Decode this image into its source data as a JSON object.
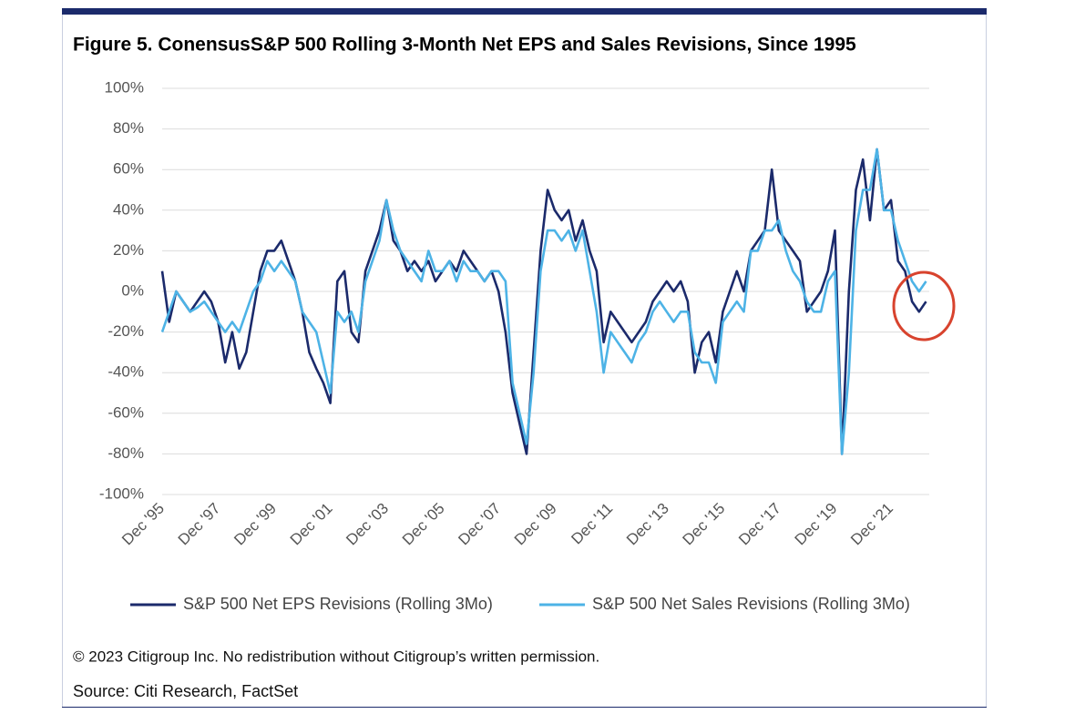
{
  "chart_data": {
    "type": "line",
    "title": "Figure 5. ConensusS&P 500 Rolling 3-Month Net EPS and Sales Revisions, Since 1995",
    "categories": [
      "Dec '95",
      null,
      null,
      null,
      null,
      null,
      null,
      null,
      "Dec '97",
      null,
      null,
      null,
      null,
      null,
      null,
      null,
      "Dec '99",
      null,
      null,
      null,
      null,
      null,
      null,
      null,
      "Dec '01",
      null,
      null,
      null,
      null,
      null,
      null,
      null,
      "Dec '03",
      null,
      null,
      null,
      null,
      null,
      null,
      null,
      "Dec '05",
      null,
      null,
      null,
      null,
      null,
      null,
      null,
      "Dec '07",
      null,
      null,
      null,
      null,
      null,
      null,
      null,
      "Dec '09",
      null,
      null,
      null,
      null,
      null,
      null,
      null,
      "Dec '11",
      null,
      null,
      null,
      null,
      null,
      null,
      null,
      "Dec '13",
      null,
      null,
      null,
      null,
      null,
      null,
      null,
      "Dec '15",
      null,
      null,
      null,
      null,
      null,
      null,
      null,
      "Dec '17",
      null,
      null,
      null,
      null,
      null,
      null,
      null,
      "Dec '19",
      null,
      null,
      null,
      null,
      null,
      null,
      null,
      "Dec '21",
      null,
      null,
      null,
      null,
      null
    ],
    "series": [
      {
        "name": "S&P 500 Net EPS Revisions (Rolling 3Mo)",
        "color": "#1b2a6b",
        "values": [
          10,
          -15,
          0,
          -5,
          -10,
          -5,
          0,
          -5,
          -15,
          -35,
          -20,
          -38,
          -30,
          -10,
          10,
          20,
          20,
          25,
          15,
          5,
          -10,
          -30,
          -38,
          -45,
          -55,
          5,
          10,
          -20,
          -25,
          10,
          20,
          30,
          45,
          25,
          20,
          10,
          15,
          10,
          15,
          5,
          10,
          15,
          10,
          20,
          15,
          10,
          5,
          10,
          0,
          -20,
          -50,
          -65,
          -80,
          -30,
          20,
          50,
          40,
          35,
          40,
          25,
          35,
          20,
          10,
          -25,
          -10,
          -15,
          -20,
          -25,
          -20,
          -15,
          -5,
          0,
          5,
          0,
          5,
          -5,
          -40,
          -25,
          -20,
          -35,
          -10,
          0,
          10,
          0,
          20,
          25,
          30,
          60,
          30,
          25,
          20,
          15,
          -10,
          -5,
          0,
          10,
          30,
          -80,
          0,
          50,
          65,
          35,
          70,
          40,
          45,
          15,
          10,
          -5,
          -10,
          -5
        ]
      },
      {
        "name": "S&P 500 Net Sales Revisions (Rolling 3Mo)",
        "color": "#4db3e6",
        "values": [
          -20,
          -10,
          0,
          -5,
          -10,
          -8,
          -5,
          -10,
          -15,
          -20,
          -15,
          -20,
          -10,
          0,
          5,
          15,
          10,
          15,
          10,
          5,
          -10,
          -15,
          -20,
          -35,
          -50,
          -10,
          -15,
          -10,
          -20,
          5,
          15,
          25,
          45,
          30,
          20,
          15,
          10,
          5,
          20,
          10,
          10,
          15,
          5,
          15,
          10,
          10,
          5,
          10,
          10,
          5,
          -45,
          -60,
          -75,
          -40,
          10,
          30,
          30,
          25,
          30,
          20,
          30,
          10,
          -10,
          -40,
          -20,
          -25,
          -30,
          -35,
          -25,
          -20,
          -10,
          -5,
          -10,
          -15,
          -10,
          -10,
          -30,
          -35,
          -35,
          -45,
          -15,
          -10,
          -5,
          -10,
          20,
          20,
          30,
          30,
          35,
          20,
          10,
          5,
          -5,
          -10,
          -10,
          5,
          10,
          -80,
          -40,
          30,
          50,
          50,
          70,
          40,
          40,
          25,
          15,
          5,
          0,
          5
        ]
      }
    ],
    "ylim": [
      -100,
      100
    ],
    "yticks": [
      {
        "value": -100,
        "label": "-100%"
      },
      {
        "value": -80,
        "label": "-80%"
      },
      {
        "value": -60,
        "label": "-60%"
      },
      {
        "value": -40,
        "label": "-40%"
      },
      {
        "value": -20,
        "label": "-20%"
      },
      {
        "value": 0,
        "label": "0%"
      },
      {
        "value": 20,
        "label": "20%"
      },
      {
        "value": 40,
        "label": "40%"
      },
      {
        "value": 60,
        "label": "60%"
      },
      {
        "value": 80,
        "label": "80%"
      },
      {
        "value": 100,
        "label": "100%"
      }
    ],
    "grid": true,
    "legend": "bottom",
    "notes": [
      "© 2023 Citigroup Inc. No redistribution without Citigroup’s written permission.",
      "Source: Citi Research, FactSet"
    ]
  }
}
